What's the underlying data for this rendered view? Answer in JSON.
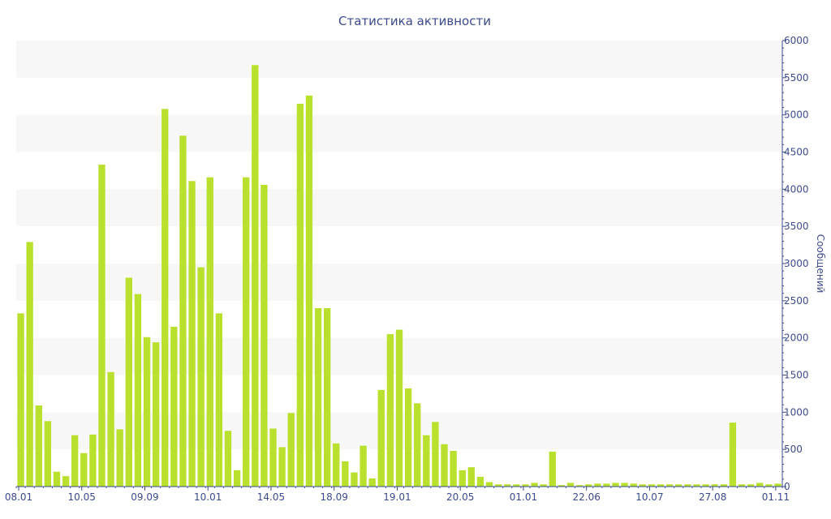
{
  "chart_data": {
    "type": "bar",
    "title": "Статистика активности",
    "xlabel": "",
    "ylabel": "Сообщений",
    "y_axis_side": "right",
    "ylim": [
      0,
      6000
    ],
    "y_ticks": [
      0,
      500,
      1000,
      1500,
      2000,
      2500,
      3000,
      3500,
      4000,
      4500,
      5000,
      5500,
      6000
    ],
    "grid": "alternating horizontal bands",
    "legend": "none",
    "colors": {
      "bar": "#b8e02c",
      "band": "#f7f7f7",
      "axis": "#3d4a8a",
      "text": "#3d4a8a"
    },
    "x_tick_labels": [
      {
        "index": 0,
        "label": "08.01"
      },
      {
        "index": 7,
        "label": "10.05"
      },
      {
        "index": 14,
        "label": "09.09"
      },
      {
        "index": 21,
        "label": "10.01"
      },
      {
        "index": 28,
        "label": "14.05"
      },
      {
        "index": 35,
        "label": "18.09"
      },
      {
        "index": 42,
        "label": "19.01"
      },
      {
        "index": 49,
        "label": "20.05"
      },
      {
        "index": 56,
        "label": "01.01"
      },
      {
        "index": 63,
        "label": "22.06"
      },
      {
        "index": 70,
        "label": "10.07"
      },
      {
        "index": 77,
        "label": "27.08"
      },
      {
        "index": 84,
        "label": "01.11"
      }
    ],
    "values": [
      2330,
      3290,
      1090,
      880,
      200,
      140,
      690,
      450,
      700,
      4330,
      1540,
      770,
      2810,
      2590,
      2010,
      1940,
      5080,
      2150,
      4720,
      4110,
      2950,
      4160,
      2330,
      750,
      220,
      4160,
      5670,
      4060,
      780,
      530,
      990,
      5150,
      5260,
      2400,
      2400,
      580,
      340,
      190,
      550,
      110,
      1300,
      2050,
      2110,
      1320,
      1120,
      690,
      870,
      570,
      480,
      220,
      260,
      130,
      60,
      30,
      30,
      30,
      30,
      50,
      30,
      470,
      20,
      50,
      20,
      30,
      40,
      40,
      50,
      50,
      40,
      30,
      30,
      30,
      30,
      30,
      30,
      30,
      30,
      30,
      30,
      860,
      30,
      30,
      50,
      30,
      40
    ]
  }
}
